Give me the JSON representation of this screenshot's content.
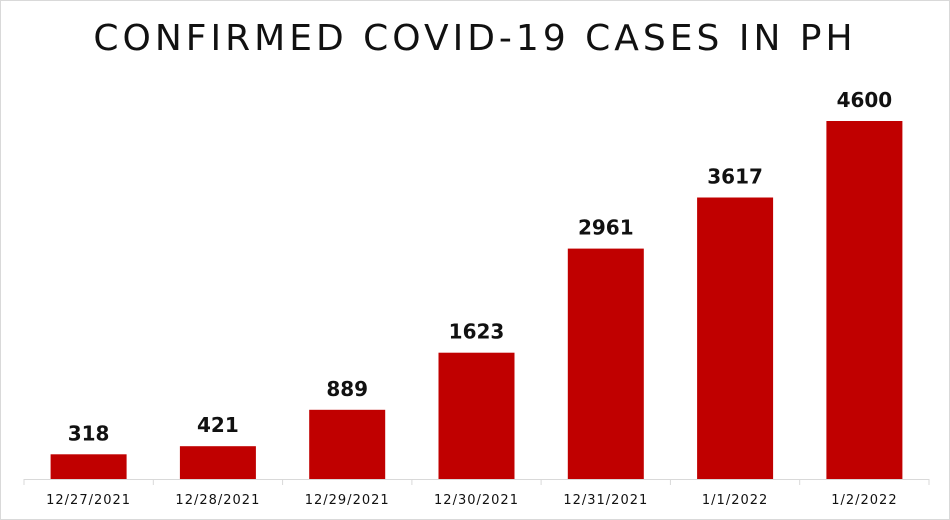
{
  "chart_data": {
    "type": "bar",
    "title": "CONFIRMED COVID-19 CASES IN PH",
    "xlabel": "",
    "ylabel": "",
    "categories": [
      "12/27/2021",
      "12/28/2021",
      "12/29/2021",
      "12/30/2021",
      "12/31/2021",
      "1/1/2022",
      "1/2/2022"
    ],
    "values": [
      318,
      421,
      889,
      1623,
      2961,
      3617,
      4600
    ],
    "data_labels": [
      "318",
      "421",
      "889",
      "1623",
      "2961",
      "3617",
      "4600"
    ],
    "ylim": [
      0,
      5000
    ],
    "grid": false,
    "legend": "none",
    "bar_color": "#c00000"
  }
}
